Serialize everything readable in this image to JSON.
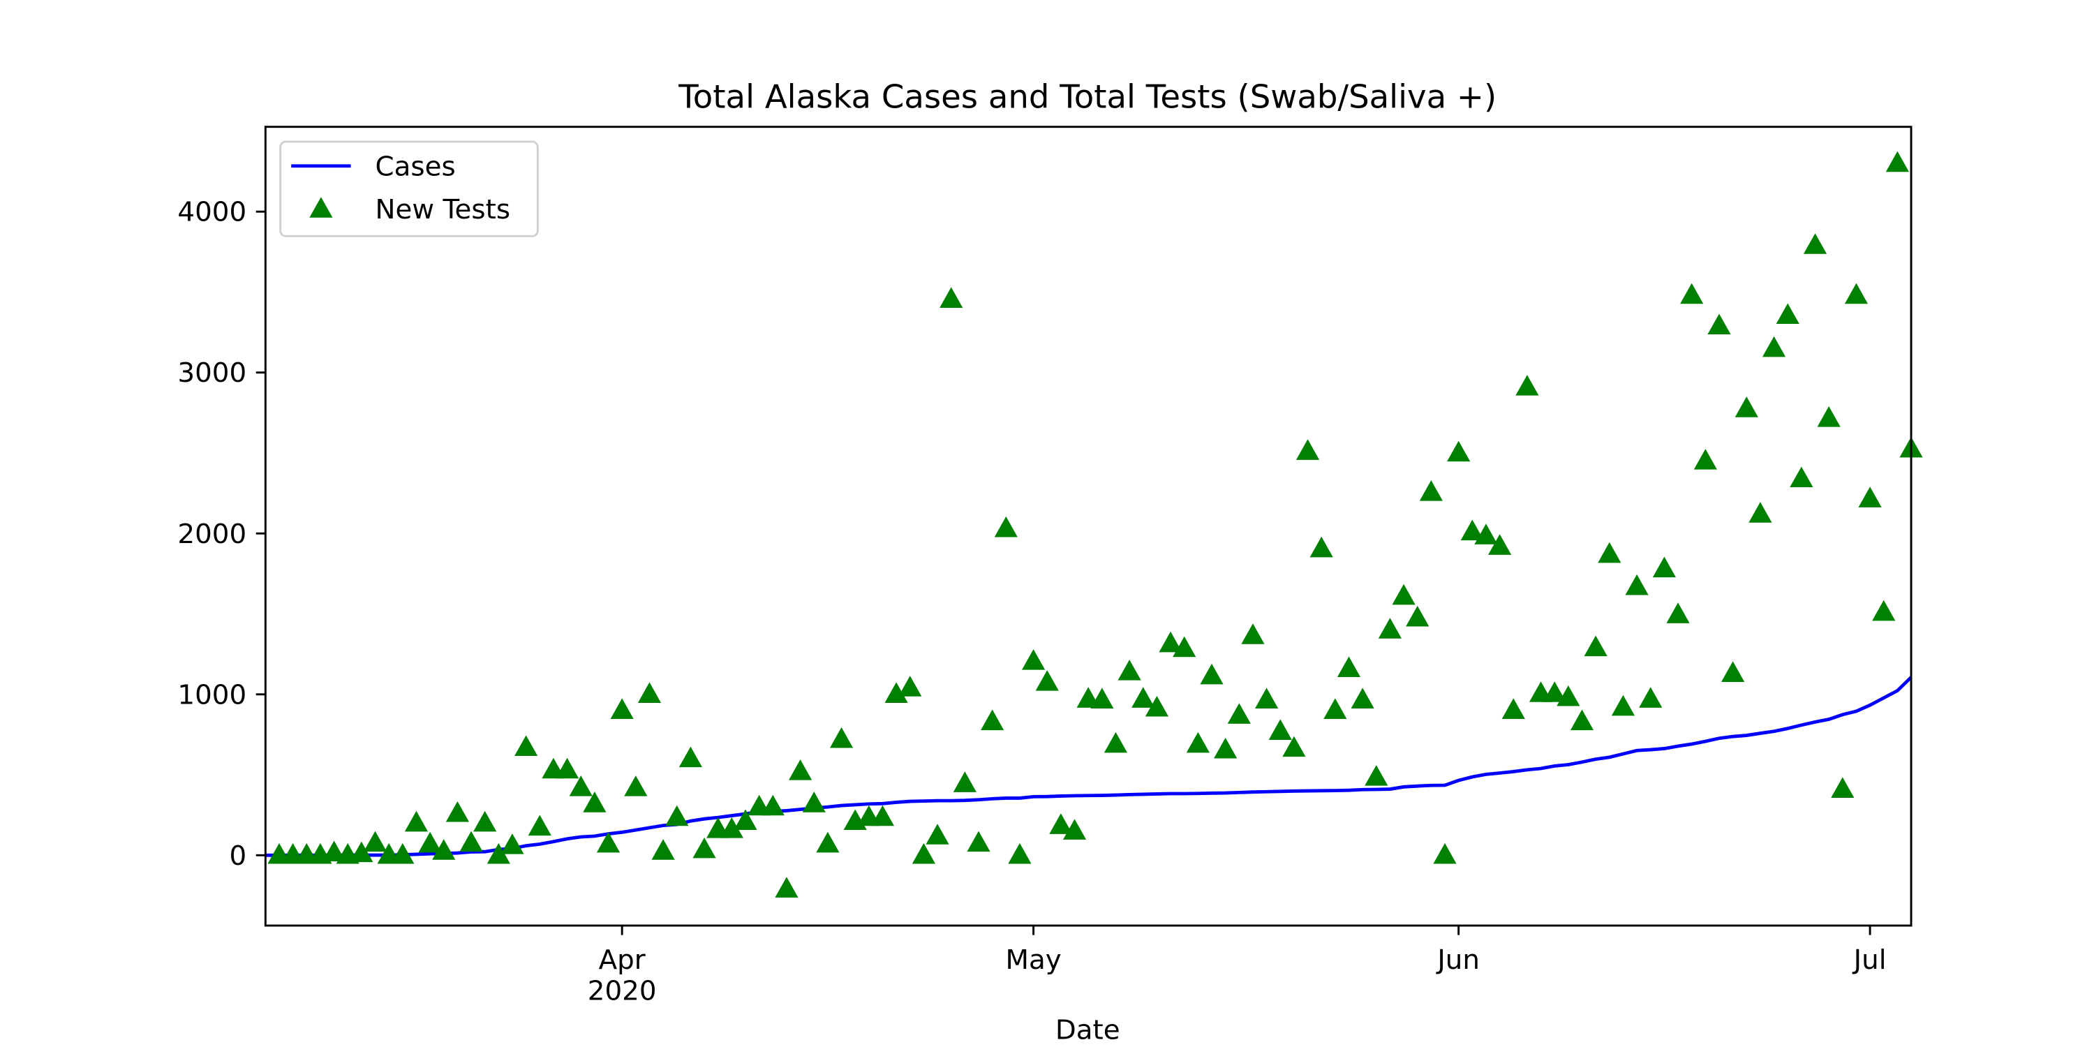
{
  "chart_data": {
    "type": "line-scatter",
    "title": "Total Alaska Cases and Total Tests (Swab/Saliva +)",
    "x_label": "Date",
    "x": [
      "2020-03-06",
      "2020-03-07",
      "2020-03-08",
      "2020-03-09",
      "2020-03-10",
      "2020-03-11",
      "2020-03-12",
      "2020-03-13",
      "2020-03-14",
      "2020-03-15",
      "2020-03-16",
      "2020-03-17",
      "2020-03-18",
      "2020-03-19",
      "2020-03-20",
      "2020-03-21",
      "2020-03-22",
      "2020-03-23",
      "2020-03-24",
      "2020-03-25",
      "2020-03-26",
      "2020-03-27",
      "2020-03-28",
      "2020-03-29",
      "2020-03-30",
      "2020-03-31",
      "2020-04-01",
      "2020-04-02",
      "2020-04-03",
      "2020-04-04",
      "2020-04-05",
      "2020-04-06",
      "2020-04-07",
      "2020-04-08",
      "2020-04-09",
      "2020-04-10",
      "2020-04-11",
      "2020-04-12",
      "2020-04-13",
      "2020-04-14",
      "2020-04-15",
      "2020-04-16",
      "2020-04-17",
      "2020-04-18",
      "2020-04-19",
      "2020-04-20",
      "2020-04-21",
      "2020-04-22",
      "2020-04-23",
      "2020-04-24",
      "2020-04-25",
      "2020-04-26",
      "2020-04-27",
      "2020-04-28",
      "2020-04-29",
      "2020-04-30",
      "2020-05-01",
      "2020-05-02",
      "2020-05-03",
      "2020-05-04",
      "2020-05-05",
      "2020-05-06",
      "2020-05-07",
      "2020-05-08",
      "2020-05-09",
      "2020-05-10",
      "2020-05-11",
      "2020-05-12",
      "2020-05-13",
      "2020-05-14",
      "2020-05-15",
      "2020-05-16",
      "2020-05-17",
      "2020-05-18",
      "2020-05-19",
      "2020-05-20",
      "2020-05-21",
      "2020-05-22",
      "2020-05-23",
      "2020-05-24",
      "2020-05-25",
      "2020-05-26",
      "2020-05-27",
      "2020-05-28",
      "2020-05-29",
      "2020-05-30",
      "2020-05-31",
      "2020-06-01",
      "2020-06-02",
      "2020-06-03",
      "2020-06-04",
      "2020-06-05",
      "2020-06-06",
      "2020-06-07",
      "2020-06-08",
      "2020-06-09",
      "2020-06-10",
      "2020-06-11",
      "2020-06-12",
      "2020-06-13",
      "2020-06-14",
      "2020-06-15",
      "2020-06-16",
      "2020-06-17",
      "2020-06-18",
      "2020-06-19",
      "2020-06-20",
      "2020-06-21",
      "2020-06-22",
      "2020-06-23",
      "2020-06-24",
      "2020-06-25",
      "2020-06-26",
      "2020-06-27",
      "2020-06-28",
      "2020-06-29",
      "2020-06-30",
      "2020-07-01",
      "2020-07-02",
      "2020-07-03",
      "2020-07-04"
    ],
    "series": [
      {
        "name": "Cases",
        "color": "#0000ff",
        "kind": "line",
        "values": [
          0,
          0,
          0,
          0,
          0,
          0,
          1,
          1,
          1,
          1,
          3,
          6,
          9,
          11,
          14,
          21,
          22,
          36,
          42,
          59,
          69,
          85,
          102,
          114,
          119,
          133,
          143,
          157,
          171,
          185,
          191,
          213,
          226,
          235,
          246,
          257,
          270,
          272,
          277,
          285,
          293,
          300,
          309,
          314,
          319,
          321,
          329,
          335,
          337,
          339,
          339,
          341,
          345,
          351,
          355,
          355,
          364,
          365,
          368,
          370,
          371,
          372,
          374,
          377,
          379,
          381,
          383,
          383,
          384,
          386,
          387,
          390,
          393,
          395,
          397,
          399,
          400,
          401,
          402,
          404,
          408,
          409,
          411,
          425,
          430,
          434,
          435,
          465,
          487,
          503,
          511,
          520,
          531,
          539,
          555,
          563,
          579,
          597,
          609,
          630,
          651,
          656,
          663,
          678,
          691,
          708,
          727,
          738,
          745,
          758,
          770,
          788,
          809,
          828,
          845,
          874,
          895,
          933,
          978,
          1023,
          1106
        ]
      },
      {
        "name": "New Tests",
        "color": "#008000",
        "kind": "scatter",
        "marker": "triangle",
        "values": [
          null,
          0,
          0,
          0,
          0,
          15,
          0,
          10,
          75,
          0,
          0,
          200,
          70,
          25,
          260,
          75,
          200,
          0,
          60,
          670,
          175,
          530,
          530,
          420,
          320,
          70,
          900,
          420,
          1000,
          25,
          235,
          600,
          35,
          160,
          160,
          210,
          300,
          300,
          -210,
          520,
          320,
          70,
          720,
          210,
          235,
          235,
          1000,
          1040,
          0,
          120,
          3455,
          445,
          75,
          830,
          2030,
          0,
          1205,
          1075,
          185,
          150,
          970,
          965,
          690,
          1140,
          970,
          915,
          1315,
          1285,
          690,
          1115,
          655,
          870,
          1365,
          965,
          770,
          665,
          2510,
          1905,
          900,
          1160,
          965,
          485,
          1400,
          1610,
          1475,
          2255,
          0,
          2500,
          2010,
          1985,
          1920,
          900,
          2910,
          1005,
          1005,
          980,
          830,
          1290,
          1870,
          920,
          1670,
          970,
          1780,
          1495,
          3480,
          2450,
          3290,
          1130,
          2775,
          2120,
          3150,
          3355,
          2340,
          3790,
          2715,
          410,
          3480,
          2215,
          1510,
          4300,
          2525
        ]
      }
    ],
    "xlim": [
      "2020-03-06",
      "2020-07-04"
    ],
    "xticks": [
      {
        "value": "2020-04-01",
        "label": "Apr\n2020"
      },
      {
        "value": "2020-05-01",
        "label": "May"
      },
      {
        "value": "2020-06-01",
        "label": "Jun"
      },
      {
        "value": "2020-07-01",
        "label": "Jul"
      }
    ],
    "ylim": [
      -437,
      4527
    ],
    "yticks": [
      0,
      1000,
      2000,
      3000,
      4000
    ],
    "grid": false,
    "legend": "upper left"
  }
}
